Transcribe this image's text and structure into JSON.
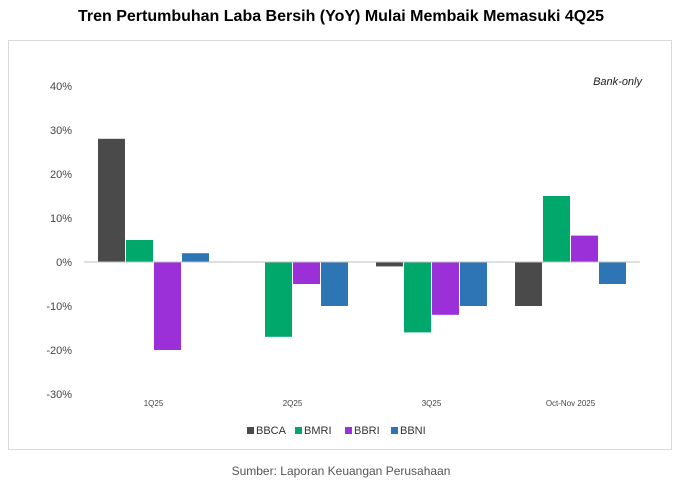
{
  "title": "Tren Pertumbuhan Laba Bersih (YoY) Mulai Membaik Memasuki 4Q25",
  "note": "Bank-only",
  "source": "Sumber: Laporan Keuangan Perusahaan",
  "chart_data": {
    "type": "bar",
    "categories": [
      "1Q25",
      "2Q25",
      "3Q25",
      "Oct-Nov 2025"
    ],
    "series": [
      {
        "name": "BBCA",
        "color": "#4a4a4a",
        "values": [
          28,
          0,
          -1,
          -10
        ]
      },
      {
        "name": "BMRI",
        "color": "#00a86b",
        "values": [
          5,
          -17,
          -16,
          15
        ]
      },
      {
        "name": "BBRI",
        "color": "#9b30d9",
        "values": [
          -20,
          -5,
          -12,
          6
        ]
      },
      {
        "name": "BBNI",
        "color": "#2e75b6",
        "values": [
          2,
          -10,
          -10,
          -5
        ]
      }
    ],
    "ylim": [
      -30,
      40
    ],
    "yticks": [
      "40%",
      "30%",
      "20%",
      "10%",
      "0%",
      "-10%",
      "-20%",
      "-30%"
    ],
    "ytick_values": [
      40,
      30,
      20,
      10,
      0,
      -10,
      -20,
      -30
    ],
    "legend": "bottom"
  }
}
